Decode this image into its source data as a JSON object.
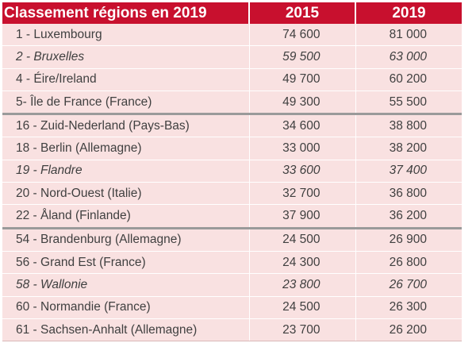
{
  "table": {
    "headers": [
      "Classement régions en 2019",
      "2015",
      "2019"
    ],
    "rows": [
      {
        "name": "1 - Luxembourg",
        "v2015": "74 600",
        "v2019": "81 000",
        "italic": false
      },
      {
        "name": "2 - Bruxelles",
        "v2015": "59 500",
        "v2019": "63 000",
        "italic": true
      },
      {
        "name": "4 - Éire/Ireland",
        "v2015": "49 700",
        "v2019": "60 200",
        "italic": false
      },
      {
        "name": "5- Île de France (France)",
        "v2015": "49 300",
        "v2019": "55 500",
        "italic": false
      },
      {
        "name": "16 - Zuid-Nederland (Pays-Bas)",
        "v2015": "34 600",
        "v2019": "38 800",
        "italic": false
      },
      {
        "name": "18 - Berlin (Allemagne)",
        "v2015": "33 000",
        "v2019": "38 200",
        "italic": false
      },
      {
        "name": "19 - Flandre",
        "v2015": "33 600",
        "v2019": "37 400",
        "italic": true
      },
      {
        "name": "20 - Nord-Ouest (Italie)",
        "v2015": "32 700",
        "v2019": "36 800",
        "italic": false
      },
      {
        "name": "22 - Åland (Finlande)",
        "v2015": "37 900",
        "v2019": "36 200",
        "italic": false
      },
      {
        "name": "54 - Brandenburg (Allemagne)",
        "v2015": "24 500",
        "v2019": "26 900",
        "italic": false
      },
      {
        "name": "56 - Grand Est (France)",
        "v2015": "24 300",
        "v2019": "26 800",
        "italic": false
      },
      {
        "name": "58 - Wallonie",
        "v2015": "23 800",
        "v2019": "26 700",
        "italic": true
      },
      {
        "name": "60 - Normandie (France)",
        "v2015": "24 500",
        "v2019": "26 300",
        "italic": false
      },
      {
        "name": "61 - Sachsen-Anhalt (Allemagne)",
        "v2015": "23 700",
        "v2019": "26 200",
        "italic": false
      }
    ],
    "colors": {
      "header_bg": "#c8102e",
      "header_text": "#ffffff",
      "row_bg": "#f9e1e1",
      "row_text": "#404040",
      "group_separator": "#9a9a9a"
    }
  }
}
